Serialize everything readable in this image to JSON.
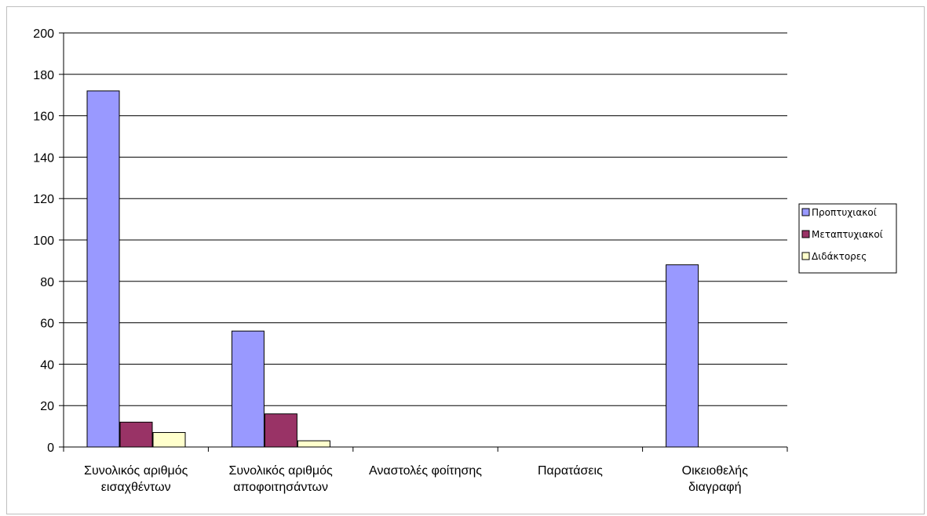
{
  "chart_data": {
    "type": "bar",
    "categories": [
      [
        "Συνολικός αριθμός",
        "εισαχθέντων"
      ],
      [
        "Συνολικός αριθμός",
        "αποφοιτησάντων"
      ],
      [
        "Αναστολές φοίτησης"
      ],
      [
        "Παρατάσεις"
      ],
      [
        "Οικειοθελής",
        "διαγραφή"
      ]
    ],
    "series": [
      {
        "name": "Προπτυχιακοί",
        "color": "#9999ff",
        "values": [
          172,
          56,
          0,
          0,
          88
        ]
      },
      {
        "name": "Μεταπτυχιακοί",
        "color": "#993366",
        "values": [
          12,
          16,
          0,
          0,
          0
        ]
      },
      {
        "name": "Διδάκτορες",
        "color": "#ffffcc",
        "values": [
          7,
          3,
          0,
          0,
          0
        ]
      }
    ],
    "ylim": [
      0,
      200
    ],
    "yticks": [
      0,
      20,
      40,
      60,
      80,
      100,
      120,
      140,
      160,
      180,
      200
    ],
    "grid": true,
    "legend": "right",
    "title": "",
    "xlabel": "",
    "ylabel": ""
  }
}
